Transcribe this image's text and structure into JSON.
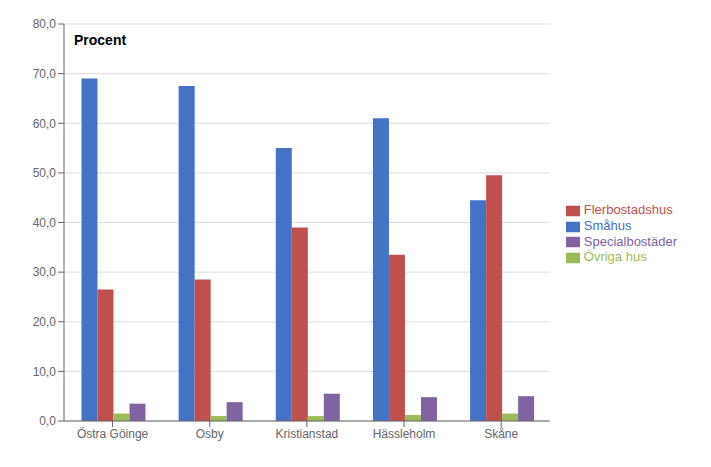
{
  "chart_data": {
    "type": "bar",
    "ylabel": "Procent",
    "categories": [
      "Östra Göinge",
      "Osby",
      "Kristianstad",
      "Hässleholm",
      "Skåne"
    ],
    "series": [
      {
        "name": "Småhus",
        "color": "#4472C4",
        "values": [
          69.0,
          67.5,
          55.0,
          61.0,
          44.5
        ]
      },
      {
        "name": "Flerbostadshus",
        "color": "#C0504D",
        "values": [
          26.5,
          28.5,
          39.0,
          33.5,
          49.5
        ]
      },
      {
        "name": "Övriga hus",
        "color": "#9BBB59",
        "values": [
          1.5,
          1.0,
          1.0,
          1.2,
          1.5
        ]
      },
      {
        "name": "Specialbostäder",
        "color": "#8064A2",
        "values": [
          3.5,
          3.8,
          5.5,
          4.8,
          5.0
        ]
      }
    ],
    "ylim": [
      0,
      80
    ],
    "yticks": [
      {
        "value": 0,
        "label": "0,0"
      },
      {
        "value": 10,
        "label": "10,0"
      },
      {
        "value": 20,
        "label": "20,0"
      },
      {
        "value": 30,
        "label": "30,0"
      },
      {
        "value": 40,
        "label": "40,0"
      },
      {
        "value": 50,
        "label": "50,0"
      },
      {
        "value": 60,
        "label": "60,0"
      },
      {
        "value": 70,
        "label": "70,0"
      },
      {
        "value": 80,
        "label": "80,0"
      }
    ],
    "grid": true,
    "legend": "right"
  }
}
